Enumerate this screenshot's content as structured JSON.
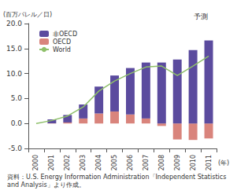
{
  "chart_data": {
    "type": "bar",
    "y_label": "(百万バレル／日)",
    "x_label": "(年)",
    "source": "資料：U.S. Energy Information Administration「Independent Statistics and Analysis」より作成。",
    "annotations": [
      {
        "text": "予測",
        "categories": [
          "2010",
          "2011"
        ]
      }
    ],
    "categories": [
      "2000",
      "2001",
      "2002",
      "2003",
      "2004",
      "2005",
      "2006",
      "2007",
      "2008",
      "2009",
      "2010",
      "2011"
    ],
    "stacked": true,
    "series": [
      {
        "name": "非OECD",
        "type": "bar",
        "color": "#5b4b9e",
        "values": [
          0,
          0.75,
          1.5,
          2.8,
          5.4,
          7.2,
          9.3,
          11.2,
          12.2,
          12.8,
          14.7,
          16.6
        ]
      },
      {
        "name": "OECD",
        "type": "bar",
        "color": "#d9847c",
        "values": [
          0,
          0.05,
          0.2,
          1.0,
          2.0,
          2.4,
          1.8,
          1.0,
          -0.5,
          -3.2,
          -3.3,
          -3.0
        ]
      },
      {
        "name": "World",
        "type": "line",
        "color": "#8fc06a",
        "values": [
          0,
          0.6,
          1.5,
          3.3,
          6.5,
          8.5,
          10.0,
          11.3,
          11.5,
          9.6,
          11.5,
          13.5
        ]
      }
    ],
    "ylim": [
      -5,
      20
    ],
    "yticks": [
      {
        "value": -5,
        "label": "-5.0"
      },
      {
        "value": 0,
        "label": "0.0"
      },
      {
        "value": 5,
        "label": "5.0"
      },
      {
        "value": 10,
        "label": "10.0"
      },
      {
        "value": 15,
        "label": "15.0"
      },
      {
        "value": 20,
        "label": "20.0"
      }
    ],
    "grid": false,
    "legend": "upper left"
  }
}
